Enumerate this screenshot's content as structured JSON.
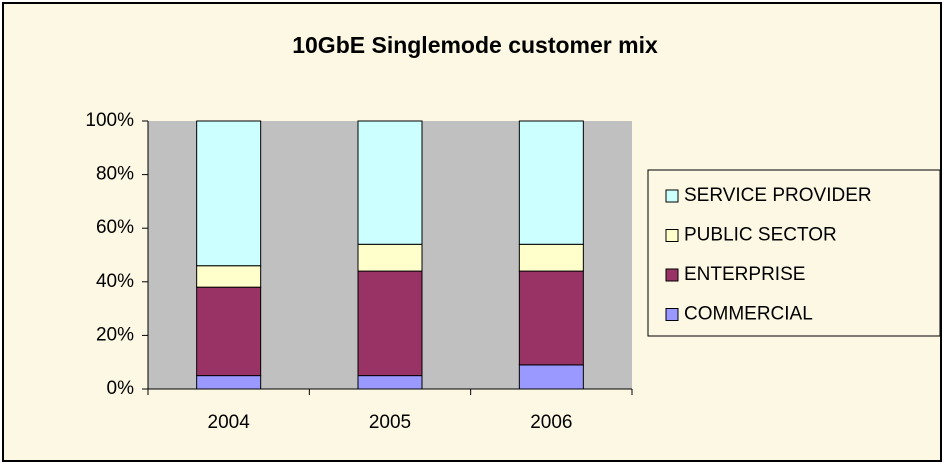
{
  "chart_data": {
    "type": "stacked_bar",
    "title": "10GbE Singlemode customer mix",
    "categories": [
      "2004",
      "2005",
      "2006"
    ],
    "series": [
      {
        "name": "COMMERCIAL",
        "color": "#9999ff",
        "values": [
          5,
          5,
          9
        ]
      },
      {
        "name": "ENTERPRISE",
        "color": "#993366",
        "values": [
          33,
          39,
          35
        ]
      },
      {
        "name": "PUBLIC SECTOR",
        "color": "#ffffcc",
        "values": [
          8,
          10,
          10
        ]
      },
      {
        "name": "SERVICE PROVIDER",
        "color": "#ccffff",
        "values": [
          54,
          46,
          46
        ]
      }
    ],
    "ylim": [
      0,
      100
    ],
    "yticks": [
      {
        "value": 0,
        "label": "0%"
      },
      {
        "value": 20,
        "label": "20%"
      },
      {
        "value": 40,
        "label": "40%"
      },
      {
        "value": 60,
        "label": "60%"
      },
      {
        "value": 80,
        "label": "80%"
      },
      {
        "value": 100,
        "label": "100%"
      }
    ],
    "grid": false,
    "legend": "right"
  }
}
